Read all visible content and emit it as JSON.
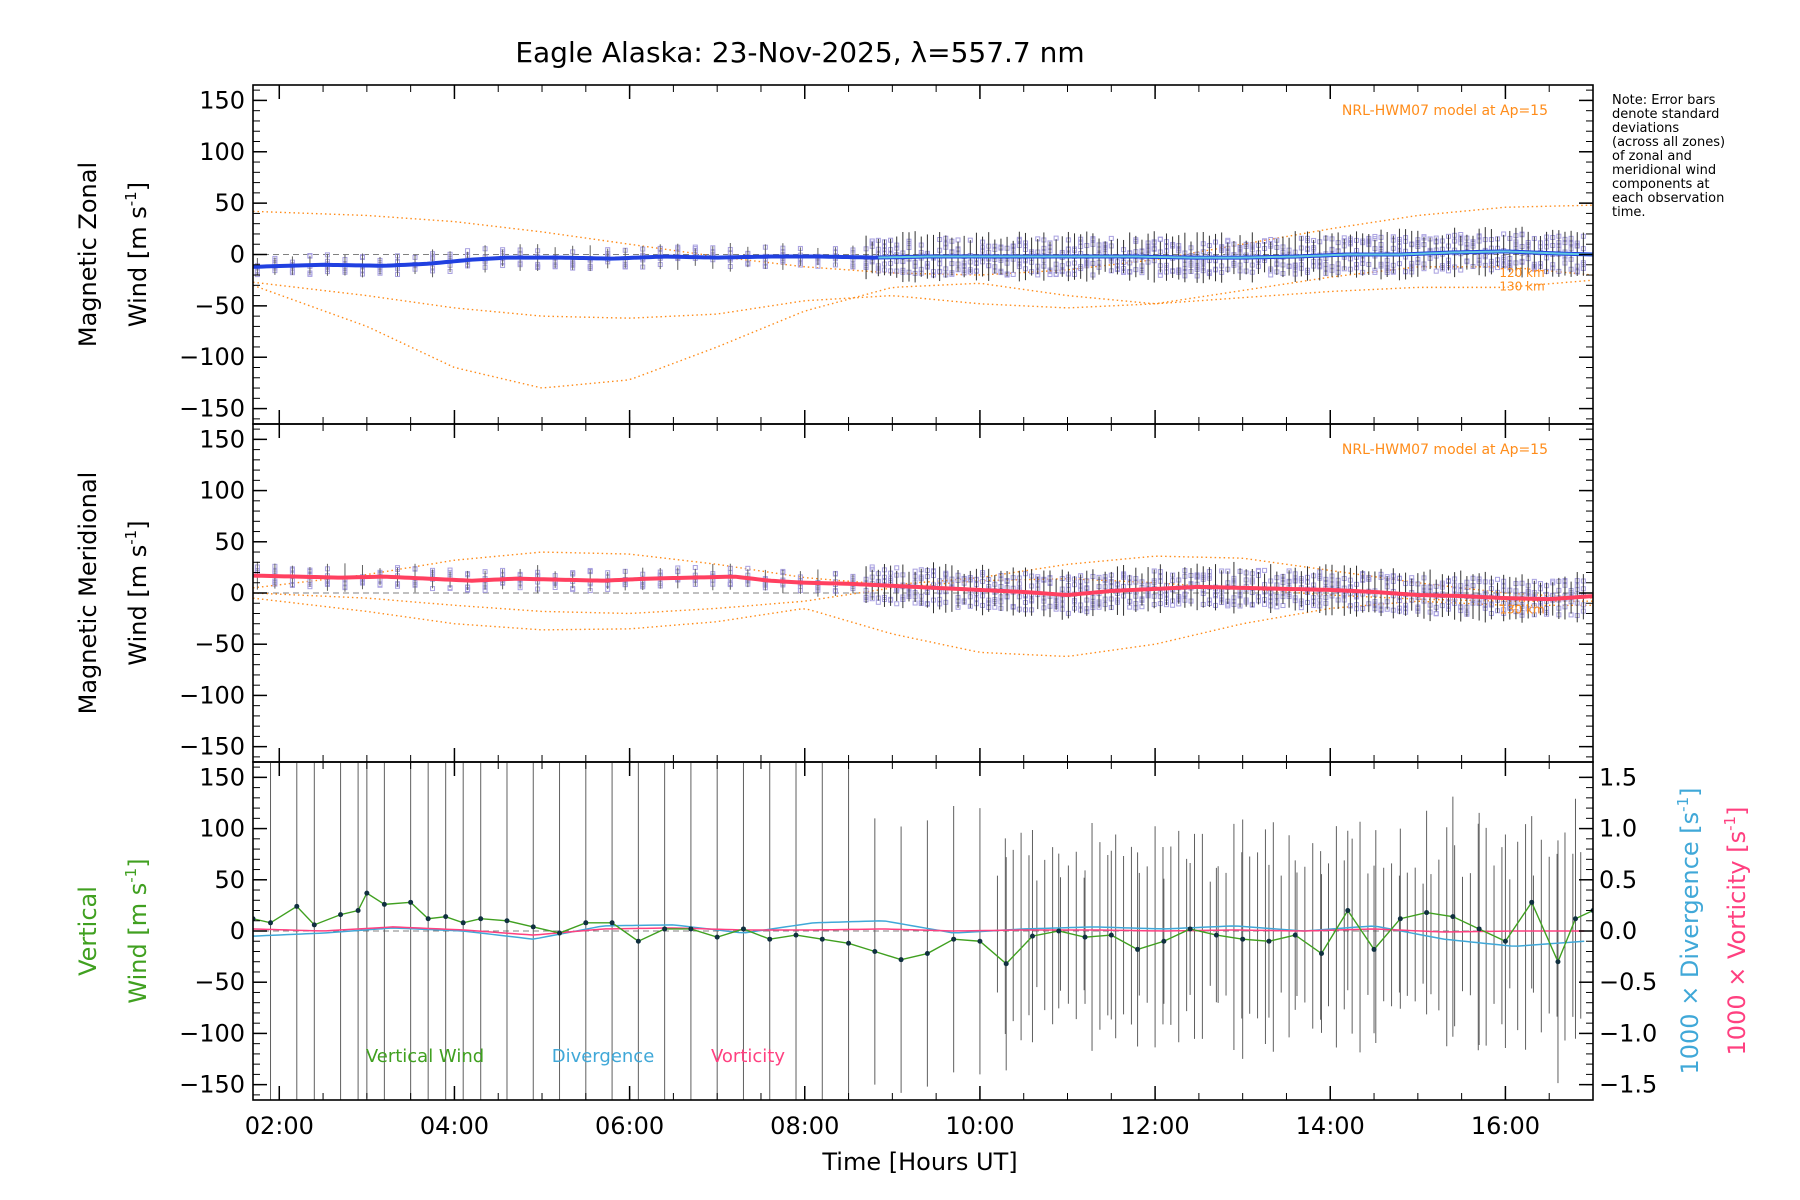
{
  "figure": {
    "title": "Eagle Alaska: 23-Nov-2025, λ=557.7 nm",
    "note_lines": [
      "Note: Error bars",
      "denote standard",
      "deviations",
      "(across all zones)",
      "of zonal and",
      "meridional wind",
      "components at",
      "each observation",
      "time."
    ],
    "xlabel": "Time [Hours UT]"
  },
  "colors": {
    "zonal": "#2040e0",
    "zonal_light": "#60c8e0",
    "meridional": "#ff4060",
    "model": "#ff8c1a",
    "zone_points": "#a8a0e0",
    "vertical": "#40a020",
    "divergence": "#40a8d8",
    "vorticity": "#ff4080",
    "errorbar": "#606060",
    "dots": "#103040"
  },
  "chart_data": [
    {
      "type": "line",
      "panel": "zonal",
      "ylabel_line1": "Magnetic Zonal",
      "ylabel_line2": "Wind [m s",
      "ylabel_sup": "-1",
      "ylabel_end": "]",
      "model_label": "NRL-HWM07 model at Ap=15",
      "model_alt_labels": [
        "120 km",
        "130 km"
      ],
      "ylim": [
        -165,
        165
      ],
      "yticks": [
        -150,
        -100,
        -50,
        0,
        50,
        100,
        150
      ],
      "ytick_labels": [
        "−150",
        "−100",
        "−50",
        "0",
        "50",
        "100",
        "150"
      ],
      "xlim": [
        1.7,
        17.0
      ],
      "xticks": [
        2,
        4,
        6,
        8,
        10,
        12,
        14,
        16
      ],
      "xtick_labels": [
        "02:00",
        "04:00",
        "06:00",
        "08:00",
        "10:00",
        "12:00",
        "14:00",
        "16:00"
      ],
      "series": [
        {
          "name": "Mean zonal wind",
          "x": [
            1.7,
            2.5,
            3.2,
            3.7,
            4.2,
            4.6,
            5.2,
            5.8,
            6.4,
            7.0,
            7.6,
            8.2,
            8.8,
            9.4,
            10.0,
            10.6,
            11.2,
            11.8,
            12.4,
            13.0,
            13.6,
            14.2,
            14.8,
            15.4,
            16.0,
            16.6,
            17.0
          ],
          "values": [
            -12,
            -10,
            -11,
            -9,
            -5,
            -3,
            -3,
            -4,
            -2,
            -3,
            -2,
            -2,
            -3,
            -2,
            -2,
            -2,
            -2,
            -2,
            -3,
            -3,
            -2,
            0,
            0,
            2,
            3,
            1,
            0
          ]
        },
        {
          "name": "HWM07 120 km",
          "x": [
            1.7,
            3,
            4,
            5,
            6,
            7,
            8,
            9,
            10,
            11,
            12,
            13,
            14,
            15,
            16,
            17
          ],
          "values": [
            -27,
            -40,
            -52,
            -60,
            -62,
            -58,
            -45,
            -40,
            -48,
            -52,
            -48,
            -35,
            -22,
            -12,
            -12,
            -20
          ]
        },
        {
          "name": "HWM07 130 km",
          "x": [
            1.7,
            3,
            4,
            5,
            6,
            7,
            8,
            9,
            10,
            11,
            12,
            13,
            14,
            15,
            16,
            17
          ],
          "values": [
            -30,
            -70,
            -110,
            -130,
            -122,
            -90,
            -55,
            -32,
            -28,
            -40,
            -48,
            -42,
            -36,
            -32,
            -32,
            -25
          ]
        },
        {
          "name": "HWM07 upper",
          "x": [
            1.7,
            3,
            4,
            5,
            6,
            7,
            8,
            9,
            10,
            11,
            12,
            13,
            14,
            15,
            16,
            17
          ],
          "values": [
            42,
            38,
            32,
            22,
            10,
            -2,
            -12,
            -18,
            -20,
            -15,
            -5,
            10,
            25,
            38,
            46,
            48
          ]
        }
      ]
    },
    {
      "type": "line",
      "panel": "meridional",
      "ylabel_line1": "Magnetic Meridional",
      "ylabel_line2": "Wind [m s",
      "ylabel_sup": "-1",
      "ylabel_end": "]",
      "model_label": "NRL-HWM07 model at Ap=15",
      "model_alt_labels": [
        "130 km"
      ],
      "ylim": [
        -165,
        165
      ],
      "yticks": [
        -150,
        -100,
        -50,
        0,
        50,
        100,
        150
      ],
      "ytick_labels": [
        "−150",
        "−100",
        "−50",
        "0",
        "50",
        "100",
        "150"
      ],
      "xlim": [
        1.7,
        17.0
      ],
      "xticks": [
        2,
        4,
        6,
        8,
        10,
        12,
        14,
        16
      ],
      "xtick_labels": [
        "02:00",
        "04:00",
        "06:00",
        "08:00",
        "10:00",
        "12:00",
        "14:00",
        "16:00"
      ],
      "series": [
        {
          "name": "Mean meridional wind",
          "x": [
            1.7,
            2.2,
            2.7,
            3.2,
            3.7,
            4.2,
            4.7,
            5.2,
            5.7,
            6.2,
            6.7,
            7.2,
            7.6,
            8.0,
            8.5,
            9.0,
            9.5,
            10.0,
            10.5,
            11.0,
            11.5,
            12.0,
            12.5,
            13.0,
            13.5,
            14.0,
            14.5,
            15.0,
            15.5,
            16.0,
            16.5,
            17.0
          ],
          "values": [
            17,
            16,
            15,
            16,
            14,
            12,
            14,
            13,
            12,
            14,
            15,
            16,
            12,
            10,
            9,
            7,
            5,
            3,
            1,
            -2,
            2,
            4,
            6,
            5,
            4,
            3,
            1,
            -2,
            -3,
            -5,
            -6,
            -3
          ]
        },
        {
          "name": "HWM07 upper",
          "x": [
            1.7,
            3,
            4,
            5,
            6,
            7,
            8,
            9,
            10,
            11,
            12,
            13,
            14,
            15,
            16,
            17
          ],
          "values": [
            5,
            18,
            32,
            40,
            38,
            28,
            15,
            8,
            15,
            28,
            36,
            34,
            22,
            10,
            0,
            -5
          ]
        },
        {
          "name": "HWM07 130 km",
          "x": [
            1.7,
            3,
            4,
            5,
            6,
            7,
            8,
            9,
            10,
            11,
            12,
            13,
            14,
            15,
            16,
            17
          ],
          "values": [
            -5,
            -18,
            -30,
            -36,
            -35,
            -28,
            -15,
            -40,
            -58,
            -62,
            -50,
            -30,
            -15,
            -8,
            -12,
            -12
          ]
        },
        {
          "name": "HWM07 120 km",
          "x": [
            1.7,
            3,
            4,
            5,
            6,
            7,
            8,
            9,
            10,
            11,
            12,
            13,
            14,
            15,
            16,
            17
          ],
          "values": [
            0,
            -5,
            -12,
            -18,
            -20,
            -15,
            -8,
            5,
            12,
            14,
            10,
            4,
            -2,
            -6,
            -8,
            -8
          ]
        }
      ]
    },
    {
      "type": "line",
      "panel": "vertical",
      "ylabel_line1": "Vertical",
      "ylabel_line2": "Wind [m s",
      "ylabel_sup": "-1",
      "ylabel_end": "]",
      "ylim": [
        -165,
        165
      ],
      "yticks": [
        -150,
        -100,
        -50,
        0,
        50,
        100,
        150
      ],
      "ytick_labels": [
        "−150",
        "−100",
        "−50",
        "0",
        "50",
        "100",
        "150"
      ],
      "y2lim": [
        -1.65,
        1.65
      ],
      "y2ticks": [
        -1.5,
        -1.0,
        -0.5,
        0.0,
        0.5,
        1.0,
        1.5
      ],
      "y2tick_labels": [
        "−1.5",
        "−1.0",
        "−0.5",
        "0.0",
        "0.5",
        "1.0",
        "1.5"
      ],
      "y2label_div": "1000 × Divergence [s",
      "y2label_vort": "1000 × Vorticity [s",
      "y2label_sup": "-1",
      "y2label_end": "]",
      "legend": [
        "Vertical Wind",
        "Divergence",
        "Vorticity"
      ],
      "xlim": [
        1.7,
        17.0
      ],
      "xticks": [
        2,
        4,
        6,
        8,
        10,
        12,
        14,
        16
      ],
      "xtick_labels": [
        "02:00",
        "04:00",
        "06:00",
        "08:00",
        "10:00",
        "12:00",
        "14:00",
        "16:00"
      ],
      "series": [
        {
          "name": "Vertical Wind",
          "x": [
            1.7,
            1.9,
            2.2,
            2.4,
            2.7,
            2.9,
            3.0,
            3.2,
            3.5,
            3.7,
            3.9,
            4.1,
            4.3,
            4.6,
            4.9,
            5.2,
            5.5,
            5.8,
            6.1,
            6.4,
            6.7,
            7.0,
            7.3,
            7.6,
            7.9,
            8.2,
            8.5,
            8.8,
            9.1,
            9.4,
            9.7,
            10.0,
            10.3,
            10.6,
            10.9,
            11.2,
            11.5,
            11.8,
            12.1,
            12.4,
            12.7,
            13.0,
            13.3,
            13.6,
            13.9,
            14.2,
            14.5,
            14.8,
            15.1,
            15.4,
            15.7,
            16.0,
            16.3,
            16.6,
            16.8,
            17.0
          ],
          "values": [
            12,
            8,
            24,
            6,
            16,
            20,
            37,
            26,
            28,
            12,
            14,
            8,
            12,
            10,
            4,
            -2,
            8,
            8,
            -10,
            2,
            2,
            -6,
            2,
            -8,
            -4,
            -8,
            -12,
            -20,
            -28,
            -22,
            -8,
            -10,
            -32,
            -5,
            0,
            -6,
            -4,
            -18,
            -10,
            2,
            -4,
            -8,
            -10,
            -4,
            -22,
            20,
            -18,
            12,
            18,
            14,
            2,
            -10,
            28,
            -30,
            12,
            20
          ]
        },
        {
          "name": "Divergence",
          "x": [
            1.7,
            2.5,
            3.3,
            4.1,
            4.9,
            5.7,
            6.5,
            7.3,
            8.1,
            8.9,
            9.7,
            10.5,
            11.3,
            12.1,
            12.9,
            13.7,
            14.5,
            15.3,
            16.1,
            16.9
          ],
          "values": [
            -0.05,
            -0.02,
            0.03,
            0.0,
            -0.08,
            0.05,
            0.06,
            -0.02,
            0.08,
            0.1,
            -0.02,
            0.02,
            0.04,
            0.02,
            0.05,
            0.0,
            0.05,
            -0.08,
            -0.15,
            -0.1
          ]
        },
        {
          "name": "Vorticity",
          "x": [
            1.7,
            2.5,
            3.3,
            4.1,
            4.9,
            5.7,
            6.5,
            7.3,
            8.1,
            8.9,
            9.7,
            10.5,
            11.3,
            12.1,
            12.9,
            13.7,
            14.5,
            15.3,
            16.1,
            16.9
          ],
          "values": [
            0.02,
            0.0,
            0.04,
            0.01,
            -0.04,
            0.02,
            0.03,
            0.01,
            0.01,
            0.02,
            0.0,
            0.01,
            0.01,
            0.0,
            0.01,
            0.0,
            0.02,
            -0.01,
            0.0,
            0.0
          ]
        }
      ]
    }
  ]
}
